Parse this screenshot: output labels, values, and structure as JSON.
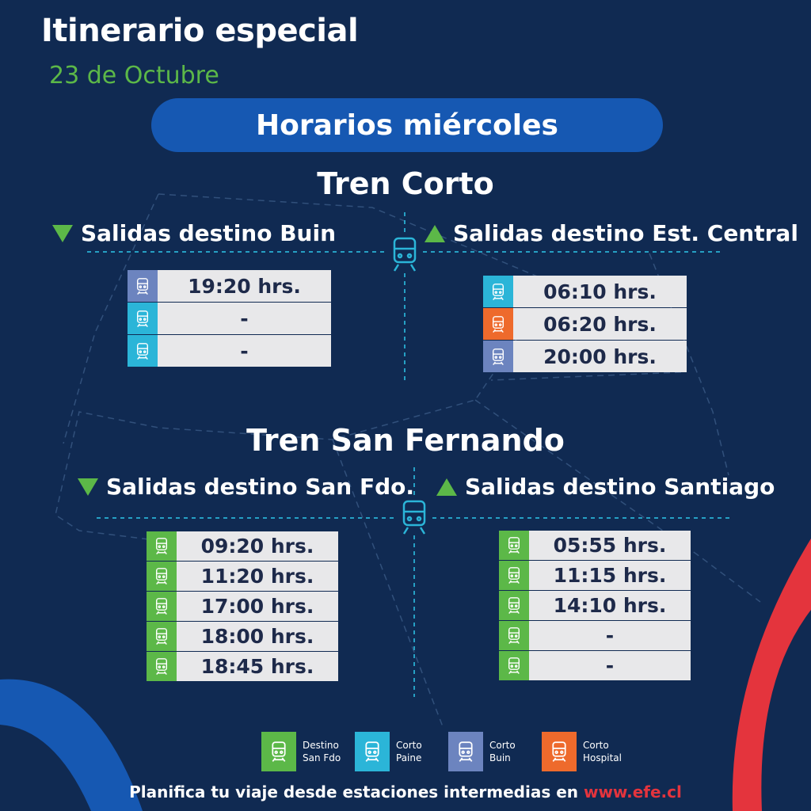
{
  "header": {
    "title": "Itinerario especial",
    "subtitle": "23 de Octubre",
    "banner": "Horarios miércoles"
  },
  "colors": {
    "background": "#102a52",
    "banner": "#1658b2",
    "green": "#5cb848",
    "cyan": "#2bb5d8",
    "lavender": "#6c84bf",
    "orange": "#ee6a2c",
    "red": "#e4343d",
    "cell": "#e8e8ea"
  },
  "tren_corto": {
    "title": "Tren Corto",
    "left": {
      "heading": "Salidas destino Buin",
      "rows": [
        {
          "time": "19:20 hrs.",
          "icon": "lavender"
        },
        {
          "time": "-",
          "icon": "cyan"
        },
        {
          "time": "-",
          "icon": "cyan"
        }
      ]
    },
    "right": {
      "heading": "Salidas destino Est. Central",
      "rows": [
        {
          "time": "06:10 hrs.",
          "icon": "cyan"
        },
        {
          "time": "06:20 hrs.",
          "icon": "orange"
        },
        {
          "time": "20:00 hrs.",
          "icon": "lavender"
        }
      ]
    }
  },
  "tren_san_fernando": {
    "title": "Tren San Fernando",
    "left": {
      "heading": "Salidas destino San Fdo.",
      "rows": [
        {
          "time": "09:20 hrs.",
          "icon": "green"
        },
        {
          "time": "11:20 hrs.",
          "icon": "green"
        },
        {
          "time": "17:00 hrs.",
          "icon": "green"
        },
        {
          "time": "18:00 hrs.",
          "icon": "green"
        },
        {
          "time": "18:45 hrs.",
          "icon": "green"
        }
      ]
    },
    "right": {
      "heading": "Salidas destino Santiago",
      "rows": [
        {
          "time": "05:55 hrs.",
          "icon": "green"
        },
        {
          "time": "11:15 hrs.",
          "icon": "green"
        },
        {
          "time": "14:10 hrs.",
          "icon": "green"
        },
        {
          "time": "-",
          "icon": "green"
        },
        {
          "time": "-",
          "icon": "green"
        }
      ]
    }
  },
  "legend": [
    {
      "line1": "Destino",
      "line2": "San Fdo",
      "icon": "green"
    },
    {
      "line1": "Corto",
      "line2": "Paine",
      "icon": "cyan"
    },
    {
      "line1": "Corto",
      "line2": "Buin",
      "icon": "lavender"
    },
    {
      "line1": "Corto",
      "line2": "Hospital",
      "icon": "orange"
    }
  ],
  "footer": {
    "text": "Planifica tu viaje desde estaciones intermedias en ",
    "url": "www.efe.cl"
  }
}
